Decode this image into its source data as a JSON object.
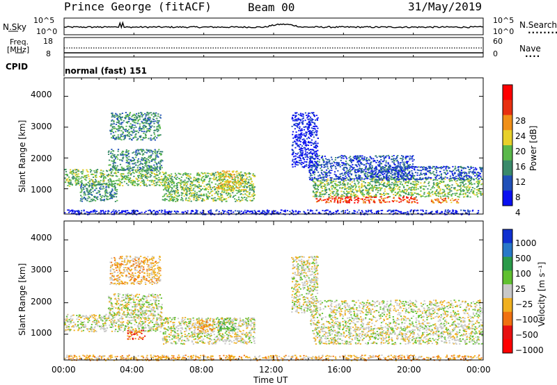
{
  "header": {
    "station": "Prince George (fitACF)",
    "beam": "Beam 00",
    "date": "31/May/2019"
  },
  "noise_panel": {
    "left_label": "N.Sky",
    "right_label": "N.Search",
    "right_legend": "........",
    "left_ticks": [
      "10^5",
      "10^0"
    ],
    "right_ticks": [
      "10^5",
      "10^0"
    ]
  },
  "freq_panel": {
    "left_label_line1": "Freq.",
    "left_label_line2": "[MHz]",
    "left_ticks": [
      "18",
      "8"
    ],
    "right_label": "Nave",
    "right_legend": "....",
    "right_ticks": [
      "60",
      "0"
    ]
  },
  "cpid": {
    "label": "CPID",
    "value": "normal (fast) 151"
  },
  "chart_data": [
    {
      "type": "heatmap",
      "name": "power",
      "ylabel": "Slant Range [km]",
      "ylim": [
        180,
        4600
      ],
      "yticks": [
        "1000",
        "2000",
        "3000",
        "4000"
      ],
      "xlim_hours": [
        0,
        24
      ],
      "colorbar": {
        "label": "Power [dB]",
        "ticks": [
          "4",
          "8",
          "12",
          "16",
          "20",
          "24",
          "28"
        ],
        "colors": [
          "#0a10f0",
          "#2050b8",
          "#3a8a6a",
          "#5ab84a",
          "#e8d02a",
          "#f09018",
          "#e83010",
          "#ff0000"
        ]
      },
      "scatter_regions": [
        {
          "t0": 0.0,
          "t1": 5.6,
          "r0": 1100,
          "r1": 1650,
          "level": 3
        },
        {
          "t0": 2.5,
          "t1": 5.6,
          "r0": 1600,
          "r1": 2300,
          "level": 2
        },
        {
          "t0": 2.6,
          "t1": 5.5,
          "r0": 2600,
          "r1": 3500,
          "level": 2
        },
        {
          "t0": 0.9,
          "t1": 3.0,
          "r0": 600,
          "r1": 1200,
          "level": 2
        },
        {
          "t0": 5.6,
          "t1": 10.9,
          "r0": 600,
          "r1": 1550,
          "level": 3
        },
        {
          "t0": 8.7,
          "t1": 10.4,
          "r0": 950,
          "r1": 1600,
          "level": 4
        },
        {
          "t0": 14.2,
          "t1": 23.9,
          "r0": 750,
          "r1": 1350,
          "level": 3
        },
        {
          "t0": 14.4,
          "t1": 20.2,
          "r0": 560,
          "r1": 760,
          "level": 6
        },
        {
          "t0": 21.0,
          "t1": 22.6,
          "r0": 560,
          "r1": 720,
          "level": 5
        },
        {
          "t0": 14.0,
          "t1": 20.0,
          "r0": 1300,
          "r1": 2100,
          "level": 1
        },
        {
          "t0": 17.5,
          "t1": 23.9,
          "r0": 1300,
          "r1": 1750,
          "level": 1
        },
        {
          "t0": 13.0,
          "t1": 14.5,
          "r0": 1700,
          "r1": 3500,
          "level": 0
        },
        {
          "t0": 0.0,
          "t1": 23.9,
          "r0": 180,
          "r1": 330,
          "level": 0
        }
      ]
    },
    {
      "type": "heatmap",
      "name": "velocity",
      "ylabel": "Slant Range [km]",
      "ylim": [
        180,
        4600
      ],
      "yticks": [
        "1000",
        "2000",
        "3000",
        "4000"
      ],
      "xlim_hours": [
        0,
        24
      ],
      "xticks": [
        "00:00",
        "04:00",
        "08:00",
        "12:00",
        "16:00",
        "20:00",
        "00:00"
      ],
      "xlabel": "Time UT",
      "colorbar": {
        "label": "Velocity [m s⁻¹]",
        "ticks": [
          "1000",
          "500",
          "100",
          "25",
          "−25",
          "−100",
          "−500",
          "−1000"
        ],
        "colors": [
          "#1030d0",
          "#2878c8",
          "#2a9a4a",
          "#60c030",
          "#c8c8c8",
          "#f0b020",
          "#f07010",
          "#e81010",
          "#ff0000"
        ]
      },
      "scatter_regions": [
        {
          "t0": 0.0,
          "t1": 5.6,
          "r0": 1100,
          "r1": 1650,
          "level": 4
        },
        {
          "t0": 2.5,
          "t1": 5.6,
          "r0": 1600,
          "r1": 2300,
          "level": 4
        },
        {
          "t0": 2.6,
          "t1": 5.5,
          "r0": 2600,
          "r1": 3500,
          "level": 5
        },
        {
          "t0": 5.6,
          "t1": 10.9,
          "r0": 700,
          "r1": 1550,
          "level": 4
        },
        {
          "t0": 7.6,
          "t1": 8.6,
          "r0": 1100,
          "r1": 1500,
          "level": 5
        },
        {
          "t0": 8.8,
          "t1": 9.8,
          "r0": 1100,
          "r1": 1500,
          "level": 3
        },
        {
          "t0": 3.6,
          "t1": 4.6,
          "r0": 850,
          "r1": 1150,
          "level": 6
        },
        {
          "t0": 14.2,
          "t1": 23.9,
          "r0": 700,
          "r1": 1300,
          "level": 4
        },
        {
          "t0": 14.0,
          "t1": 23.9,
          "r0": 1300,
          "r1": 2100,
          "level": 4
        },
        {
          "t0": 13.0,
          "t1": 14.5,
          "r0": 1700,
          "r1": 3500,
          "level": 4
        },
        {
          "t0": 0.0,
          "t1": 23.9,
          "r0": 180,
          "r1": 350,
          "level": 5
        }
      ]
    }
  ]
}
